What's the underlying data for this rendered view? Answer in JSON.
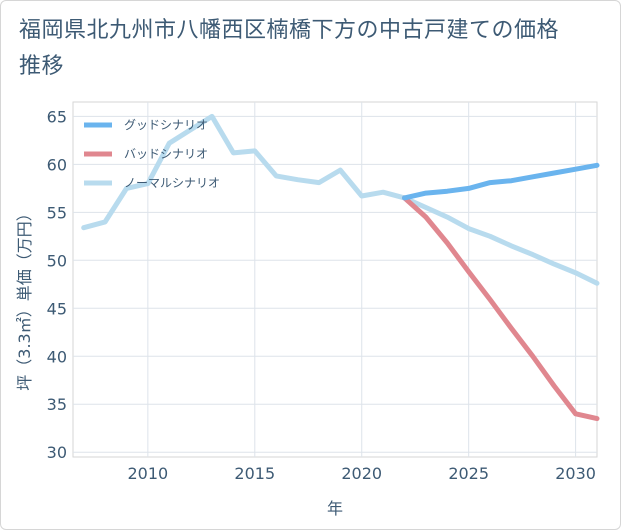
{
  "title": "福岡県北九州市八幡西区楠橋下方の中古戸建ての価格推移",
  "chart_data": {
    "type": "line",
    "title": "福岡県北九州市八幡西区楠橋下方の中古戸建ての価格推移",
    "xlabel": "年",
    "ylabel": "坪（3.3㎡）単価（万円）",
    "xlim": [
      2006.5,
      2031
    ],
    "ylim": [
      29.5,
      66.5
    ],
    "xticks": [
      2010,
      2015,
      2020,
      2025,
      2030
    ],
    "yticks": [
      30,
      35,
      40,
      45,
      50,
      55,
      60,
      65
    ],
    "grid": true,
    "legend_position": "top-left",
    "series": [
      {
        "name": "グッドシナリオ",
        "color": "#6ab4ee",
        "x": [
          2022,
          2023,
          2024,
          2025,
          2026,
          2027,
          2028,
          2029,
          2030,
          2031
        ],
        "y": [
          56.5,
          57.0,
          57.2,
          57.5,
          58.1,
          58.3,
          58.7,
          59.1,
          59.5,
          59.9
        ]
      },
      {
        "name": "バッドシナリオ",
        "color": "#e0878f",
        "x": [
          2022,
          2023,
          2024,
          2025,
          2026,
          2027,
          2028,
          2029,
          2030,
          2031
        ],
        "y": [
          56.5,
          54.5,
          51.8,
          48.8,
          45.9,
          42.9,
          40.0,
          36.9,
          34.0,
          33.5
        ]
      },
      {
        "name": "ノーマルシナリオ",
        "color": "#b8dbee",
        "x": [
          2007,
          2008,
          2009,
          2010,
          2011,
          2012,
          2013,
          2014,
          2015,
          2016,
          2017,
          2018,
          2019,
          2020,
          2021,
          2022,
          2023,
          2024,
          2025,
          2026,
          2027,
          2028,
          2029,
          2030,
          2031
        ],
        "y": [
          53.4,
          54.0,
          57.5,
          58.0,
          62.2,
          63.6,
          65.0,
          61.2,
          61.4,
          58.8,
          58.4,
          58.1,
          59.4,
          56.7,
          57.1,
          56.5,
          55.5,
          54.5,
          53.3,
          52.5,
          51.5,
          50.6,
          49.6,
          48.7,
          47.6
        ]
      }
    ]
  }
}
